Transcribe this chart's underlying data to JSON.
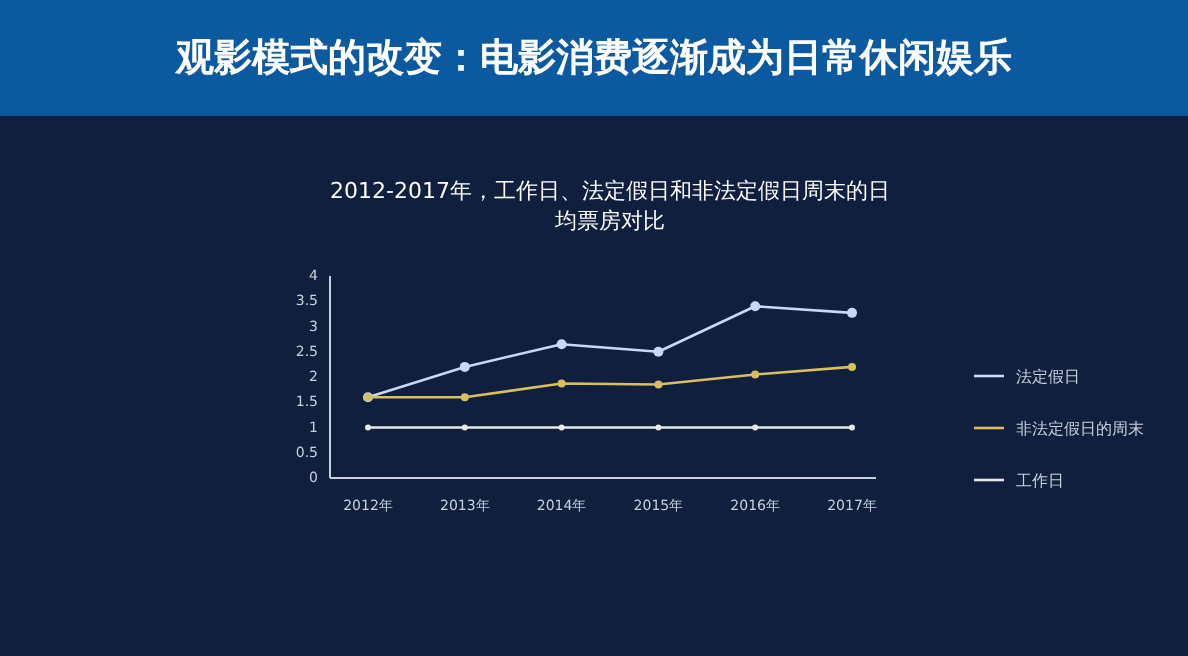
{
  "chart_data": {
    "type": "line",
    "title": "观影模式的改变：电影消费逐渐成为日常休闲娱乐",
    "subtitle": "2012-2017年，工作日、法定假日和非法定假日周末的日均票房对比",
    "categories": [
      "2012年",
      "2013年",
      "2014年",
      "2015年",
      "2016年",
      "2017年"
    ],
    "series": [
      {
        "name": "法定假日",
        "color": "#c8d8f5",
        "values": [
          1.6,
          2.2,
          2.65,
          2.5,
          3.4,
          3.27
        ]
      },
      {
        "name": "非法定假日的周末",
        "color": "#d8c060",
        "values": [
          1.6,
          1.6,
          1.87,
          1.85,
          2.05,
          2.2
        ]
      },
      {
        "name": "工作日",
        "color": "#e8e8e8",
        "values": [
          1,
          1,
          1,
          1,
          1,
          1
        ]
      }
    ],
    "ylim": [
      0,
      4
    ],
    "yticks": [
      0,
      0.5,
      1,
      1.5,
      2,
      2.5,
      3,
      3.5,
      4
    ],
    "grid": false,
    "legend": "right",
    "marker": "circle",
    "line_style": "solid"
  }
}
